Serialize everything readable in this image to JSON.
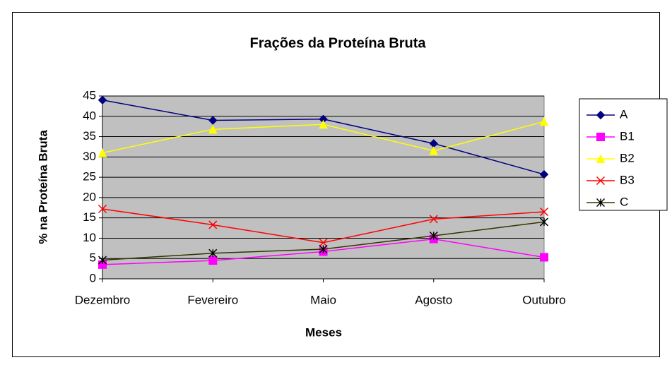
{
  "chart_data": {
    "type": "line",
    "title": "Frações da Proteína Bruta",
    "x_label": "Meses",
    "y_label": "% na Proteína Bruta",
    "categories": [
      "Dezembro",
      "Fevereiro",
      "Maio",
      "Agosto",
      "Outubro"
    ],
    "series": [
      {
        "name": "A",
        "color": "#000080",
        "marker": "diamond",
        "values": [
          44,
          39,
          39.3,
          33.3,
          25.7
        ]
      },
      {
        "name": "B1",
        "color": "#ff00ff",
        "marker": "square",
        "values": [
          3.5,
          4.5,
          6.7,
          9.8,
          5.3
        ]
      },
      {
        "name": "B2",
        "color": "#ffff00",
        "marker": "triangle",
        "values": [
          31,
          36.8,
          38,
          31.5,
          38.7
        ]
      },
      {
        "name": "B3",
        "color": "#ff0000",
        "marker": "x",
        "values": [
          17.2,
          13.3,
          8.9,
          14.7,
          16.5
        ]
      },
      {
        "name": "C",
        "color": "#333300",
        "marker": "star",
        "values": [
          4.6,
          6.3,
          7.3,
          10.6,
          14
        ]
      }
    ],
    "ylim": [
      0,
      45
    ],
    "yticks": [
      0,
      5,
      10,
      15,
      20,
      25,
      30,
      35,
      40,
      45
    ],
    "grid": true,
    "legend": "right"
  }
}
